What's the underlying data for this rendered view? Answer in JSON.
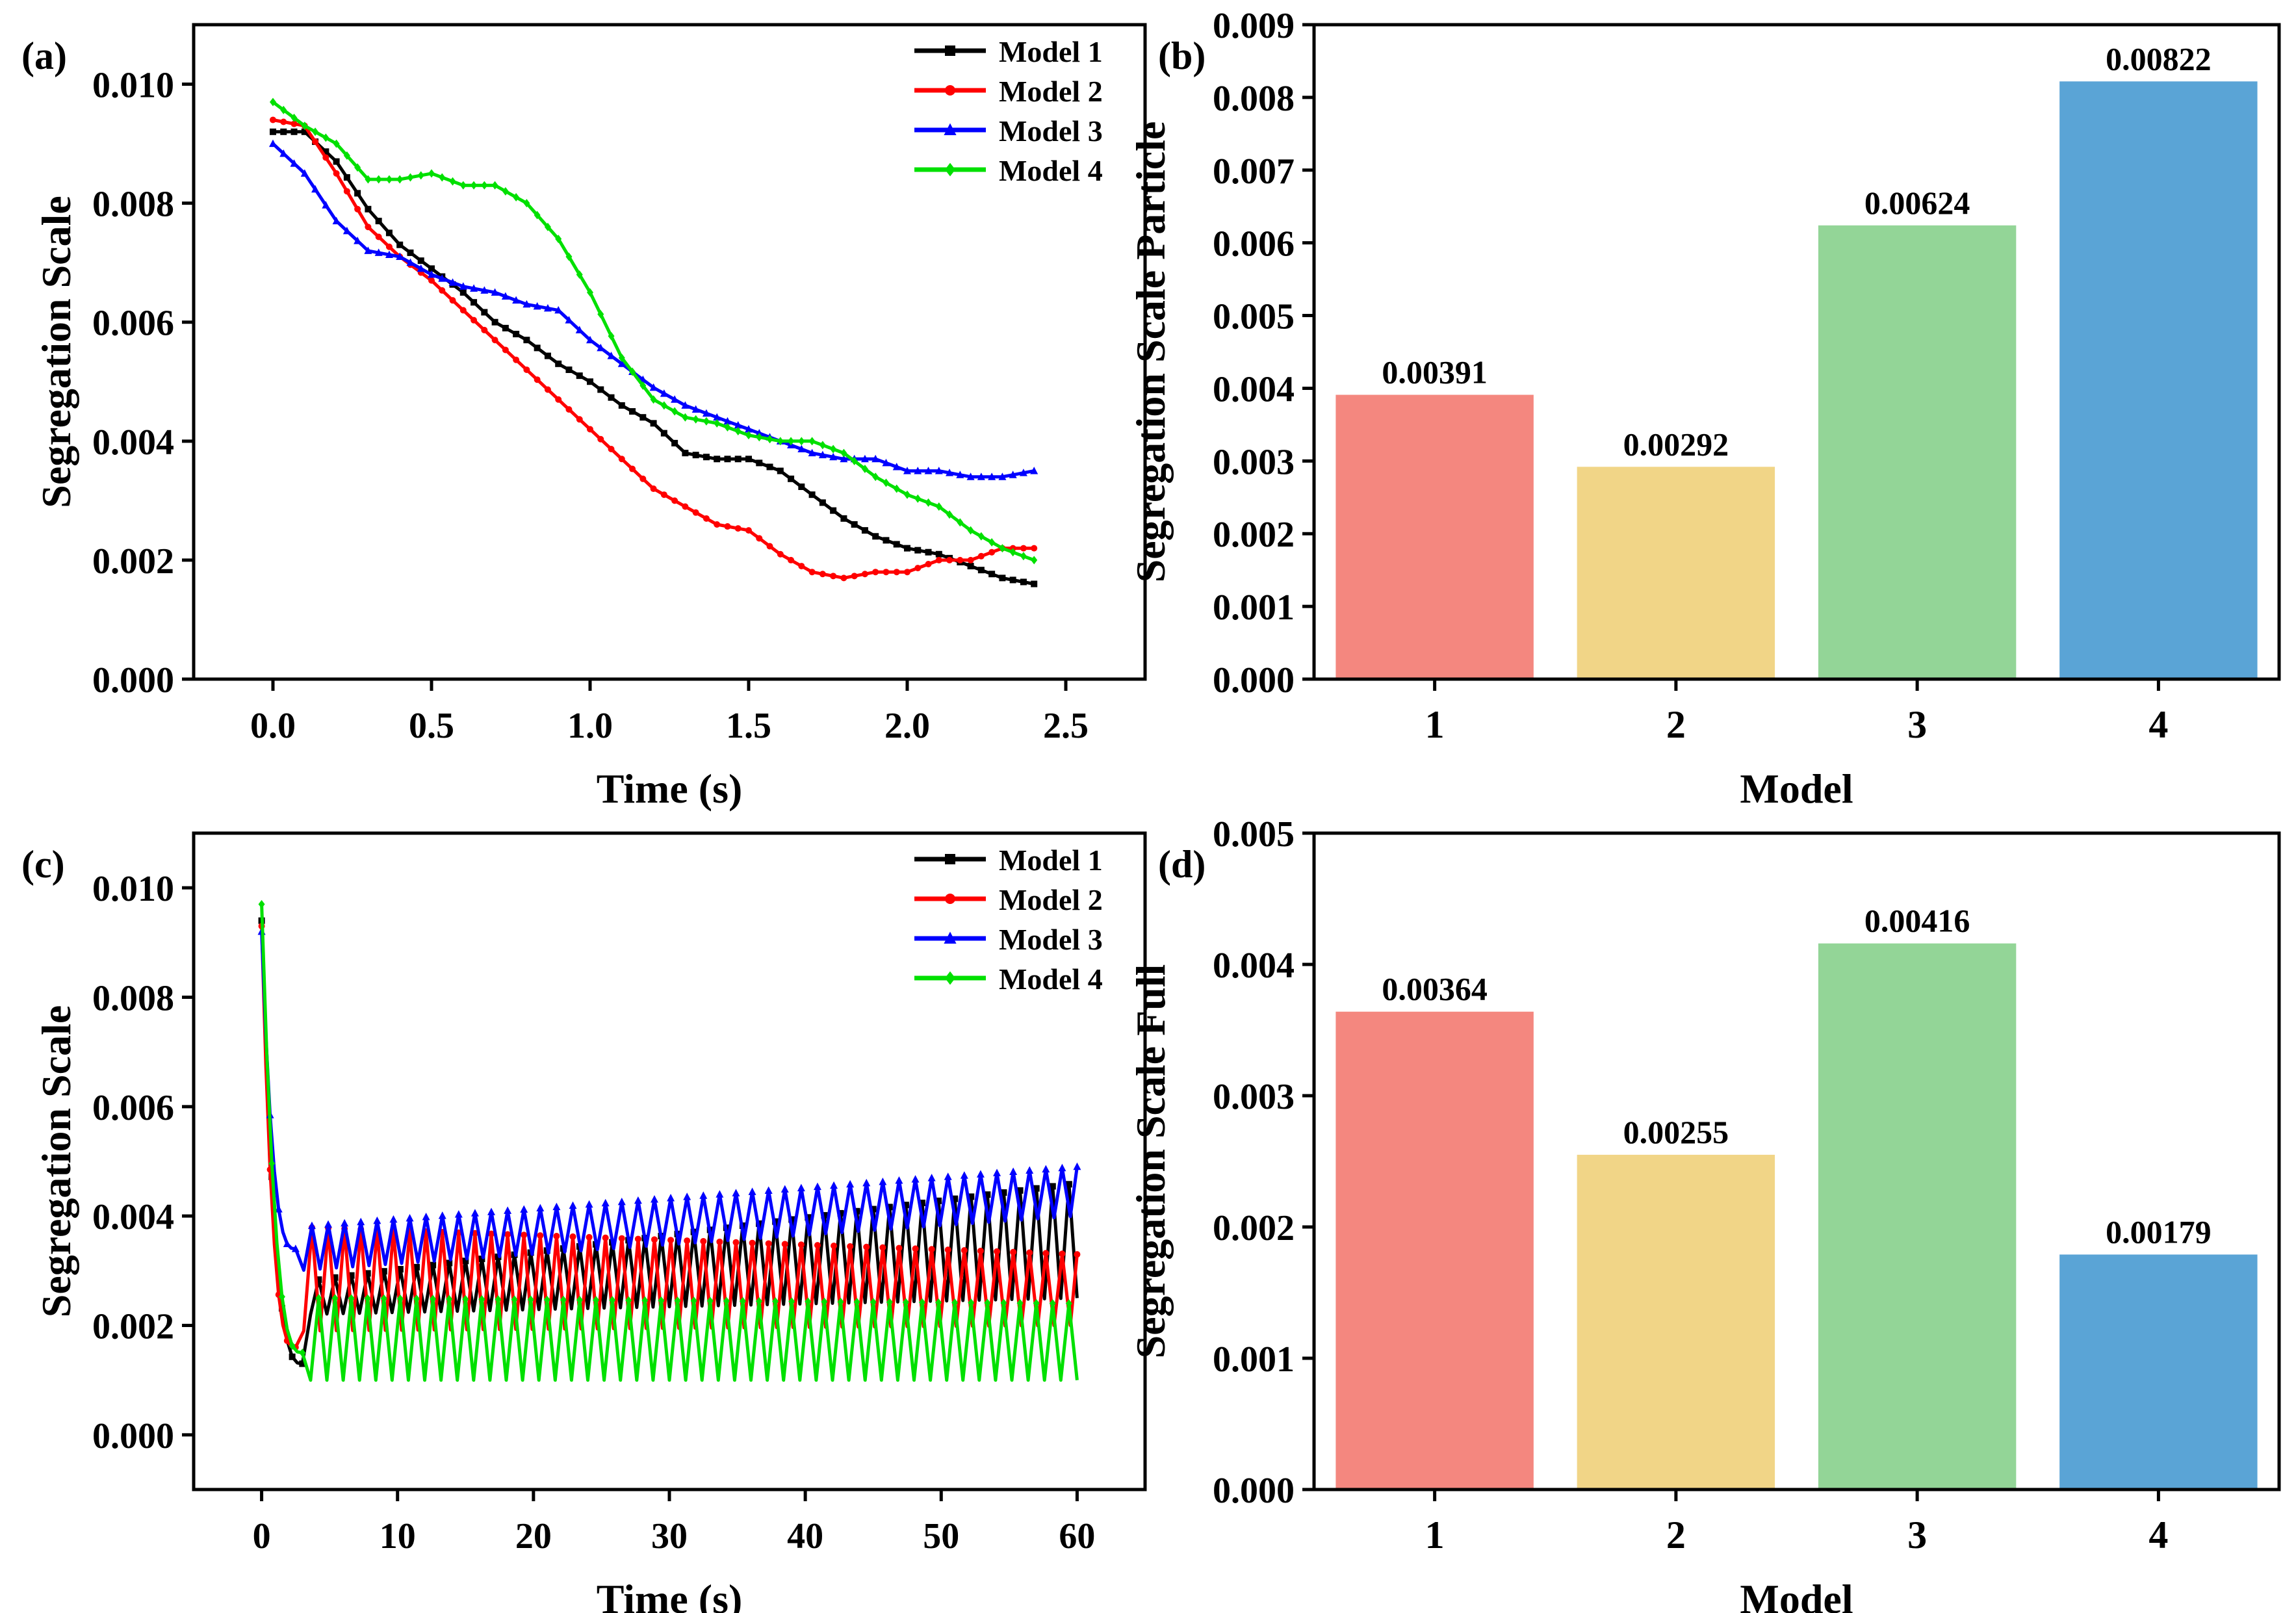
{
  "colors": {
    "model1": "#000000",
    "model2": "#ff0000",
    "model3": "#0000ff",
    "model4": "#00e000",
    "bar1": "#f4877f",
    "bar2": "#f1d587",
    "bar3": "#93d597",
    "bar4": "#5aa4d6"
  },
  "chart_data": [
    {
      "panel": "(a)",
      "type": "line",
      "xlabel": "Time (s)",
      "ylabel": "Segregation Scale",
      "xlim": [
        -0.25,
        2.75
      ],
      "ylim": [
        0,
        0.011
      ],
      "xticks": [
        0.0,
        0.5,
        1.0,
        1.5,
        2.0,
        2.5
      ],
      "xtick_labels": [
        "0.0",
        "0.5",
        "1.0",
        "1.5",
        "2.0",
        "2.5"
      ],
      "yticks": [
        0.0,
        0.002,
        0.004,
        0.006,
        0.008,
        0.01
      ],
      "ytick_labels": [
        "0.000",
        "0.002",
        "0.004",
        "0.006",
        "0.008",
        "0.010"
      ],
      "legend_position": "top-right",
      "series": [
        {
          "name": "Model 1",
          "marker": "square",
          "x": [
            0,
            0.1,
            0.2,
            0.3,
            0.4,
            0.5,
            0.6,
            0.7,
            0.8,
            0.9,
            1.0,
            1.1,
            1.2,
            1.3,
            1.4,
            1.5,
            1.6,
            1.7,
            1.8,
            1.9,
            2.0,
            2.1,
            2.2,
            2.3,
            2.4
          ],
          "values": [
            0.0092,
            0.0092,
            0.0087,
            0.0079,
            0.0073,
            0.0069,
            0.0065,
            0.006,
            0.0057,
            0.0053,
            0.005,
            0.0046,
            0.0043,
            0.0038,
            0.0037,
            0.0037,
            0.0035,
            0.0031,
            0.0027,
            0.0024,
            0.0022,
            0.0021,
            0.0019,
            0.0017,
            0.0016
          ]
        },
        {
          "name": "Model 2",
          "marker": "circle",
          "x": [
            0,
            0.1,
            0.2,
            0.3,
            0.4,
            0.5,
            0.6,
            0.7,
            0.8,
            0.9,
            1.0,
            1.1,
            1.2,
            1.3,
            1.4,
            1.5,
            1.6,
            1.7,
            1.8,
            1.9,
            2.0,
            2.1,
            2.2,
            2.3,
            2.4
          ],
          "values": [
            0.0094,
            0.0093,
            0.0085,
            0.0076,
            0.0071,
            0.0067,
            0.0062,
            0.0057,
            0.0052,
            0.0047,
            0.0042,
            0.0037,
            0.0032,
            0.0029,
            0.0026,
            0.0025,
            0.0021,
            0.0018,
            0.0017,
            0.0018,
            0.0018,
            0.002,
            0.002,
            0.0022,
            0.0022
          ]
        },
        {
          "name": "Model 3",
          "marker": "triangle",
          "x": [
            0,
            0.1,
            0.2,
            0.3,
            0.4,
            0.5,
            0.6,
            0.7,
            0.8,
            0.9,
            1.0,
            1.1,
            1.2,
            1.3,
            1.4,
            1.5,
            1.6,
            1.7,
            1.8,
            1.9,
            2.0,
            2.1,
            2.2,
            2.3,
            2.4
          ],
          "values": [
            0.009,
            0.0085,
            0.0077,
            0.0072,
            0.0071,
            0.0068,
            0.0066,
            0.0065,
            0.0063,
            0.0062,
            0.0057,
            0.0053,
            0.0049,
            0.0046,
            0.0044,
            0.0042,
            0.004,
            0.0038,
            0.0037,
            0.0037,
            0.0035,
            0.0035,
            0.0034,
            0.0034,
            0.0035
          ]
        },
        {
          "name": "Model 4",
          "marker": "diamond",
          "x": [
            0,
            0.1,
            0.2,
            0.3,
            0.4,
            0.5,
            0.6,
            0.7,
            0.8,
            0.9,
            1.0,
            1.1,
            1.2,
            1.3,
            1.4,
            1.5,
            1.6,
            1.7,
            1.8,
            1.9,
            2.0,
            2.1,
            2.2,
            2.3,
            2.4
          ],
          "values": [
            0.0097,
            0.0093,
            0.009,
            0.0084,
            0.0084,
            0.0085,
            0.0083,
            0.0083,
            0.008,
            0.0074,
            0.0065,
            0.0054,
            0.0047,
            0.0044,
            0.0043,
            0.0041,
            0.004,
            0.004,
            0.0038,
            0.0034,
            0.0031,
            0.0029,
            0.0025,
            0.0022,
            0.002
          ]
        }
      ]
    },
    {
      "panel": "(b)",
      "type": "bar",
      "xlabel": "Model",
      "ylabel": "Segregation Scale Particle",
      "categories": [
        "1",
        "2",
        "3",
        "4"
      ],
      "values": [
        0.00391,
        0.00292,
        0.00624,
        0.00822
      ],
      "value_labels": [
        "0.00391",
        "0.00292",
        "0.00624",
        "0.00822"
      ],
      "ylim": [
        0,
        0.009
      ],
      "yticks": [
        0.0,
        0.001,
        0.002,
        0.003,
        0.004,
        0.005,
        0.006,
        0.007,
        0.008,
        0.009
      ],
      "ytick_labels": [
        "0.000",
        "0.001",
        "0.002",
        "0.003",
        "0.004",
        "0.005",
        "0.006",
        "0.007",
        "0.008",
        "0.009"
      ]
    },
    {
      "panel": "(c)",
      "type": "line",
      "xlabel": "Time (s)",
      "ylabel": "Segregation Scale",
      "xlim": [
        -5,
        65
      ],
      "ylim": [
        -0.001,
        0.011
      ],
      "xticks": [
        0,
        10,
        20,
        30,
        40,
        50,
        60
      ],
      "xtick_labels": [
        "0",
        "10",
        "20",
        "30",
        "40",
        "50",
        "60"
      ],
      "yticks": [
        0.0,
        0.002,
        0.004,
        0.006,
        0.008,
        0.01
      ],
      "ytick_labels": [
        "0.000",
        "0.002",
        "0.004",
        "0.006",
        "0.008",
        "0.010"
      ],
      "legend_position": "top-right",
      "series": [
        {
          "name": "Model 1",
          "marker": "square",
          "initial": 0.0094,
          "trough_time": 3,
          "trough": 0.0013,
          "base_start": 0.0022,
          "base_end": 0.0025,
          "peak_start": 0.0028,
          "peak_end": 0.0046,
          "t_end": 60
        },
        {
          "name": "Model 2",
          "marker": "circle",
          "initial": 0.0093,
          "trough_time": 2.5,
          "trough": 0.0016,
          "base_start": 0.0019,
          "base_end": 0.002,
          "peak_start": 0.0038,
          "peak_end": 0.0033,
          "t_end": 60
        },
        {
          "name": "Model 3",
          "marker": "triangle",
          "initial": 0.0092,
          "trough_time": 2.5,
          "trough": 0.0034,
          "base_start": 0.003,
          "base_end": 0.004,
          "peak_start": 0.0038,
          "peak_end": 0.0049,
          "t_end": 60
        },
        {
          "name": "Model 4",
          "marker": "diamond",
          "initial": 0.0097,
          "trough_time": 3,
          "trough": 0.0015,
          "base_start": 0.001,
          "base_end": 0.001,
          "peak_start": 0.0025,
          "peak_end": 0.0024,
          "t_end": 60
        }
      ]
    },
    {
      "panel": "(d)",
      "type": "bar",
      "xlabel": "Model",
      "ylabel": "Segregation Scale Full",
      "categories": [
        "1",
        "2",
        "3",
        "4"
      ],
      "values": [
        0.00364,
        0.00255,
        0.00416,
        0.00179
      ],
      "value_labels": [
        "0.00364",
        "0.00255",
        "0.00416",
        "0.00179"
      ],
      "ylim": [
        0,
        0.005
      ],
      "yticks": [
        0.0,
        0.001,
        0.002,
        0.003,
        0.004,
        0.005
      ],
      "ytick_labels": [
        "0.000",
        "0.001",
        "0.002",
        "0.003",
        "0.004",
        "0.005"
      ]
    }
  ]
}
